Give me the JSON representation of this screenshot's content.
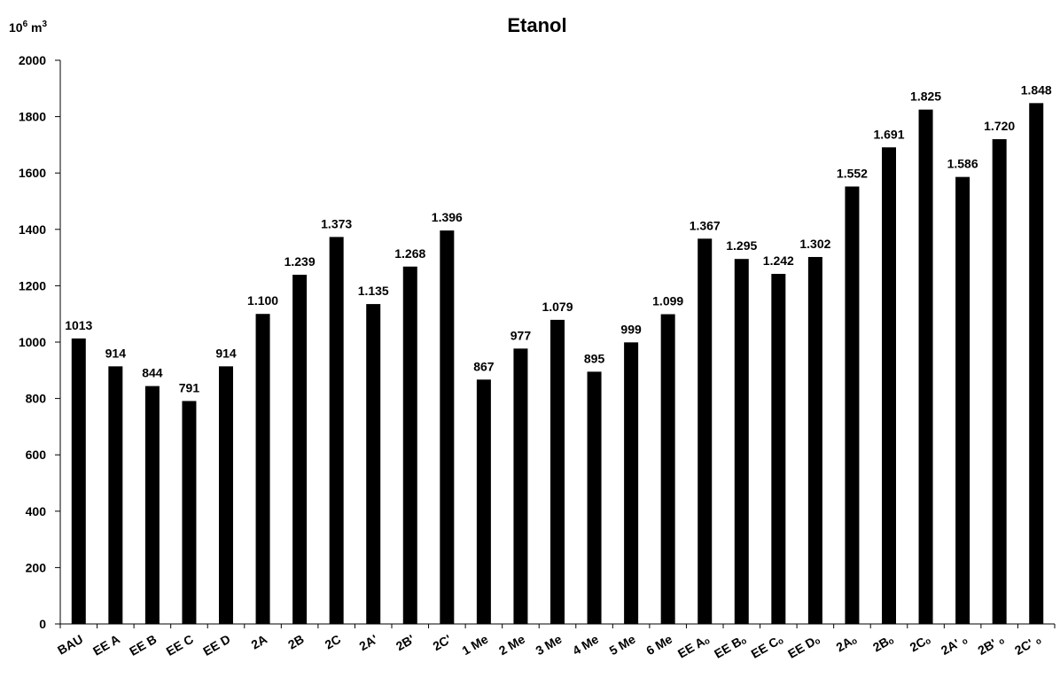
{
  "chart_data": {
    "type": "bar",
    "title": "Etanol",
    "unit_label_base": "10",
    "unit_label_exp": "6",
    "unit_label_m": " m",
    "unit_label_m_exp": "3",
    "xlabel": "",
    "ylabel": "",
    "ylim": [
      0,
      2000
    ],
    "yticks": [
      0,
      200,
      400,
      600,
      800,
      1000,
      1200,
      1400,
      1600,
      1800,
      2000
    ],
    "ytick_labels": [
      "0",
      "200",
      "400",
      "600",
      "800",
      "1000",
      "1200",
      "1400",
      "1600",
      "1800",
      "2000"
    ],
    "grid": false,
    "legend": "none",
    "bar_color": "#000000",
    "categories": [
      "BAU",
      "EE A",
      "EE B",
      "EE C",
      "EE D",
      "2A",
      "2B",
      "2C",
      "2A'",
      "2B'",
      "2C'",
      "1 Me",
      "2 Me",
      "3 Me",
      "4 Me",
      "5 Me",
      "6 Me",
      "EE Aₒ",
      "EE Bₒ",
      "EE Cₒ",
      "EE Dₒ",
      "2Aₒ",
      "2Bₒ",
      "2Cₒ",
      "2A' ₒ",
      "2B' ₒ",
      "2C' ₒ"
    ],
    "values": [
      1013,
      914,
      844,
      791,
      914,
      1100,
      1239,
      1373,
      1135,
      1268,
      1396,
      867,
      977,
      1079,
      895,
      999,
      1099,
      1367,
      1295,
      1242,
      1302,
      1552,
      1691,
      1825,
      1586,
      1720,
      1848
    ],
    "data_labels": [
      "1013",
      "914",
      "844",
      "791",
      "914",
      "1.100",
      "1.239",
      "1.373",
      "1.135",
      "1.268",
      "1.396",
      "867",
      "977",
      "1.079",
      "895",
      "999",
      "1.099",
      "1.367",
      "1.295",
      "1.242",
      "1.302",
      "1.552",
      "1.691",
      "1.825",
      "1.586",
      "1.720",
      "1.848"
    ]
  }
}
